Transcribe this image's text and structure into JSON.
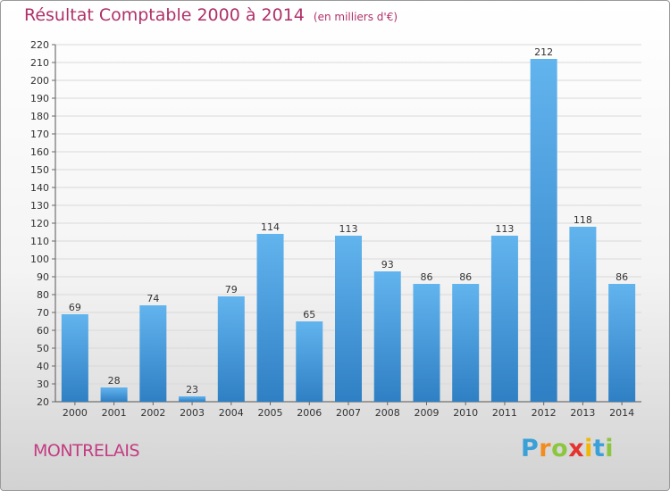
{
  "title": "Résultat Comptable 2000 à 2014",
  "subtitle": "(en milliers d'€)",
  "town": "MONTRELAIS",
  "logo": {
    "letters": [
      "P",
      "r",
      "o",
      "x",
      "i",
      "t",
      "i"
    ],
    "colors": [
      "#3aa0d8",
      "#f28c1e",
      "#8cc63f",
      "#e3342f",
      "#f2b705",
      "#3aa0d8",
      "#8cc63f"
    ]
  },
  "colors": {
    "bar": "#3d8fd6",
    "bar_light": "#5fb0ea",
    "title": "#b0306a",
    "town": "#c43c82"
  },
  "chart_data": {
    "type": "bar",
    "categories": [
      "2000",
      "2001",
      "2002",
      "2003",
      "2004",
      "2005",
      "2006",
      "2007",
      "2008",
      "2009",
      "2010",
      "2011",
      "2012",
      "2013",
      "2014"
    ],
    "values": [
      69,
      28,
      74,
      23,
      79,
      114,
      65,
      113,
      93,
      86,
      86,
      113,
      212,
      118,
      86
    ],
    "ylim": [
      20,
      220
    ],
    "yticks": [
      20,
      30,
      40,
      50,
      60,
      70,
      80,
      90,
      100,
      110,
      120,
      130,
      140,
      150,
      160,
      170,
      180,
      190,
      200,
      210,
      220
    ],
    "grid": true,
    "xlabel": "",
    "ylabel": ""
  }
}
